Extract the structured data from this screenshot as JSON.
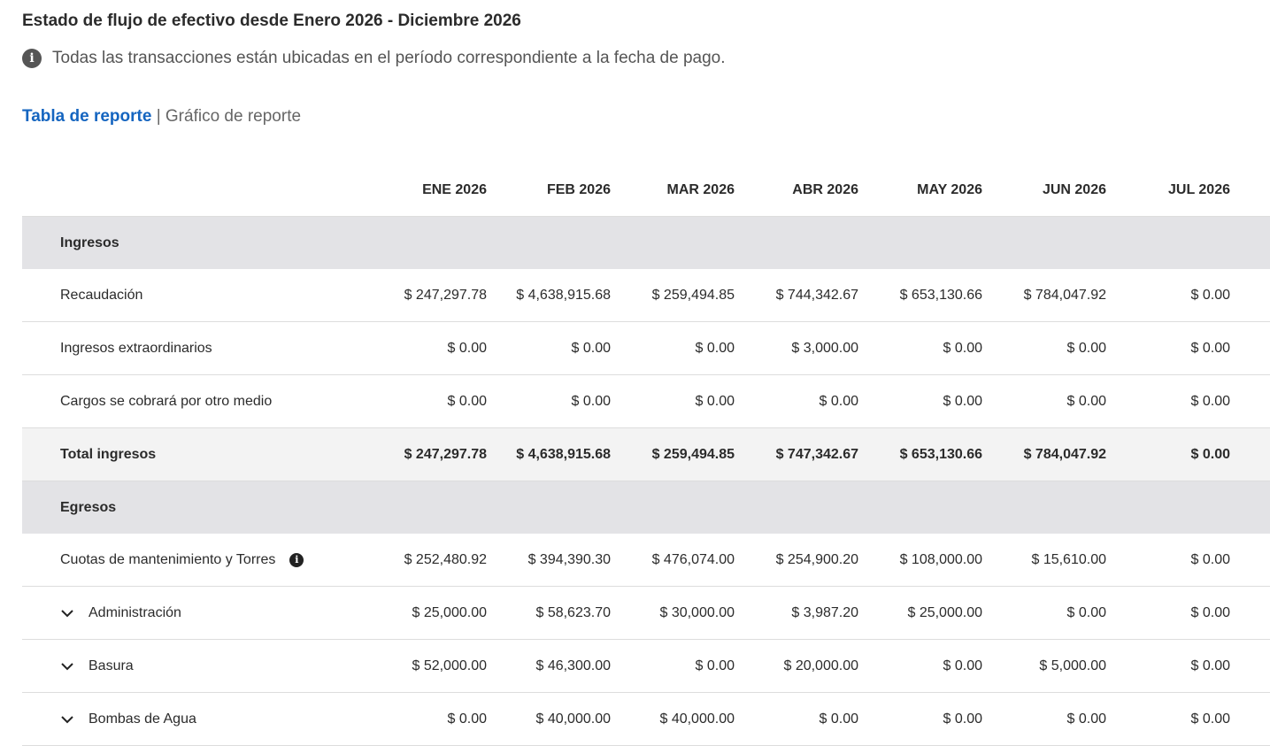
{
  "header": {
    "title": "Estado de flujo de efectivo desde Enero 2026 - Diciembre 2026",
    "info": "Todas las transacciones están ubicadas en el período correspondiente a la fecha de pago."
  },
  "tabs": {
    "active": "Tabla de reporte",
    "separator": "|",
    "other": "Gráfico de reporte"
  },
  "table": {
    "columns": [
      "ENE 2026",
      "FEB 2026",
      "MAR 2026",
      "ABR 2026",
      "MAY 2026",
      "JUN 2026",
      "JUL 2026"
    ],
    "sections": [
      {
        "title": "Ingresos",
        "rows": [
          {
            "label": "Recaudación",
            "values": [
              "$ 247,297.78",
              "$ 4,638,915.68",
              "$ 259,494.85",
              "$ 744,342.67",
              "$ 653,130.66",
              "$ 784,047.92",
              "$ 0.00"
            ]
          },
          {
            "label": "Ingresos extraordinarios",
            "values": [
              "$ 0.00",
              "$ 0.00",
              "$ 0.00",
              "$ 3,000.00",
              "$ 0.00",
              "$ 0.00",
              "$ 0.00"
            ]
          },
          {
            "label": "Cargos se cobrará por otro medio",
            "values": [
              "$ 0.00",
              "$ 0.00",
              "$ 0.00",
              "$ 0.00",
              "$ 0.00",
              "$ 0.00",
              "$ 0.00"
            ]
          }
        ],
        "total": {
          "label": "Total ingresos",
          "values": [
            "$ 247,297.78",
            "$ 4,638,915.68",
            "$ 259,494.85",
            "$ 747,342.67",
            "$ 653,130.66",
            "$ 784,047.92",
            "$ 0.00"
          ]
        }
      },
      {
        "title": "Egresos",
        "rows": [
          {
            "label": "Cuotas de mantenimiento y Torres",
            "info": true,
            "values": [
              "$ 252,480.92",
              "$ 394,390.30",
              "$ 476,074.00",
              "$ 254,900.20",
              "$ 108,000.00",
              "$ 15,610.00",
              "$ 0.00"
            ]
          },
          {
            "label": "Administración",
            "expandable": true,
            "values": [
              "$ 25,000.00",
              "$ 58,623.70",
              "$ 30,000.00",
              "$ 3,987.20",
              "$ 25,000.00",
              "$ 0.00",
              "$ 0.00"
            ]
          },
          {
            "label": "Basura",
            "expandable": true,
            "values": [
              "$ 52,000.00",
              "$ 46,300.00",
              "$ 0.00",
              "$ 20,000.00",
              "$ 0.00",
              "$ 5,000.00",
              "$ 0.00"
            ]
          },
          {
            "label": "Bombas de Agua",
            "expandable": true,
            "values": [
              "$ 0.00",
              "$ 40,000.00",
              "$ 40,000.00",
              "$ 0.00",
              "$ 0.00",
              "$ 0.00",
              "$ 0.00"
            ]
          }
        ]
      }
    ]
  }
}
